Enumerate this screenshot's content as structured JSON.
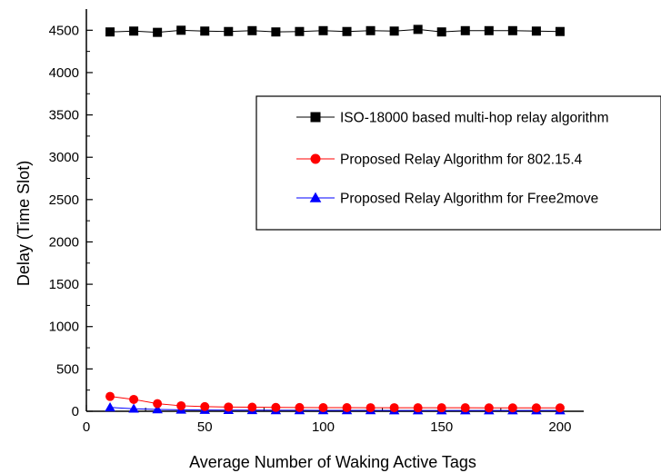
{
  "chart_data": {
    "type": "line",
    "xlabel": "Average Number of Waking Active Tags",
    "ylabel": "Delay (Time Slot)",
    "xlim": [
      0,
      210
    ],
    "ylim": [
      0,
      4750
    ],
    "x_ticks": [
      0,
      50,
      100,
      150,
      200
    ],
    "y_ticks": [
      0,
      500,
      1000,
      1500,
      2000,
      2500,
      3000,
      3500,
      4000,
      4500
    ],
    "grid": false,
    "legend_position": "right-center",
    "x": [
      10,
      20,
      30,
      40,
      50,
      60,
      70,
      80,
      90,
      100,
      110,
      120,
      130,
      140,
      150,
      160,
      170,
      180,
      190,
      200
    ],
    "series": [
      {
        "name": "ISO-18000 based multi-hop relay algorithm",
        "color": "#000000",
        "marker": "square",
        "values": [
          4480,
          4490,
          4475,
          4500,
          4490,
          4485,
          4495,
          4480,
          4485,
          4495,
          4485,
          4495,
          4490,
          4510,
          4480,
          4495,
          4495,
          4495,
          4490,
          4485
        ]
      },
      {
        "name": "Proposed Relay Algorithm for 802.15.4",
        "color": "#ff0000",
        "marker": "circle",
        "values": [
          175,
          140,
          90,
          65,
          55,
          50,
          48,
          45,
          44,
          43,
          43,
          42,
          42,
          41,
          41,
          41,
          40,
          40,
          40,
          40
        ]
      },
      {
        "name": "Proposed Relay Algorithm for Free2move",
        "color": "#0000ff",
        "marker": "triangle",
        "values": [
          45,
          30,
          22,
          18,
          15,
          14,
          13,
          12,
          12,
          11,
          11,
          11,
          10,
          10,
          10,
          10,
          10,
          10,
          10,
          10
        ]
      }
    ]
  }
}
